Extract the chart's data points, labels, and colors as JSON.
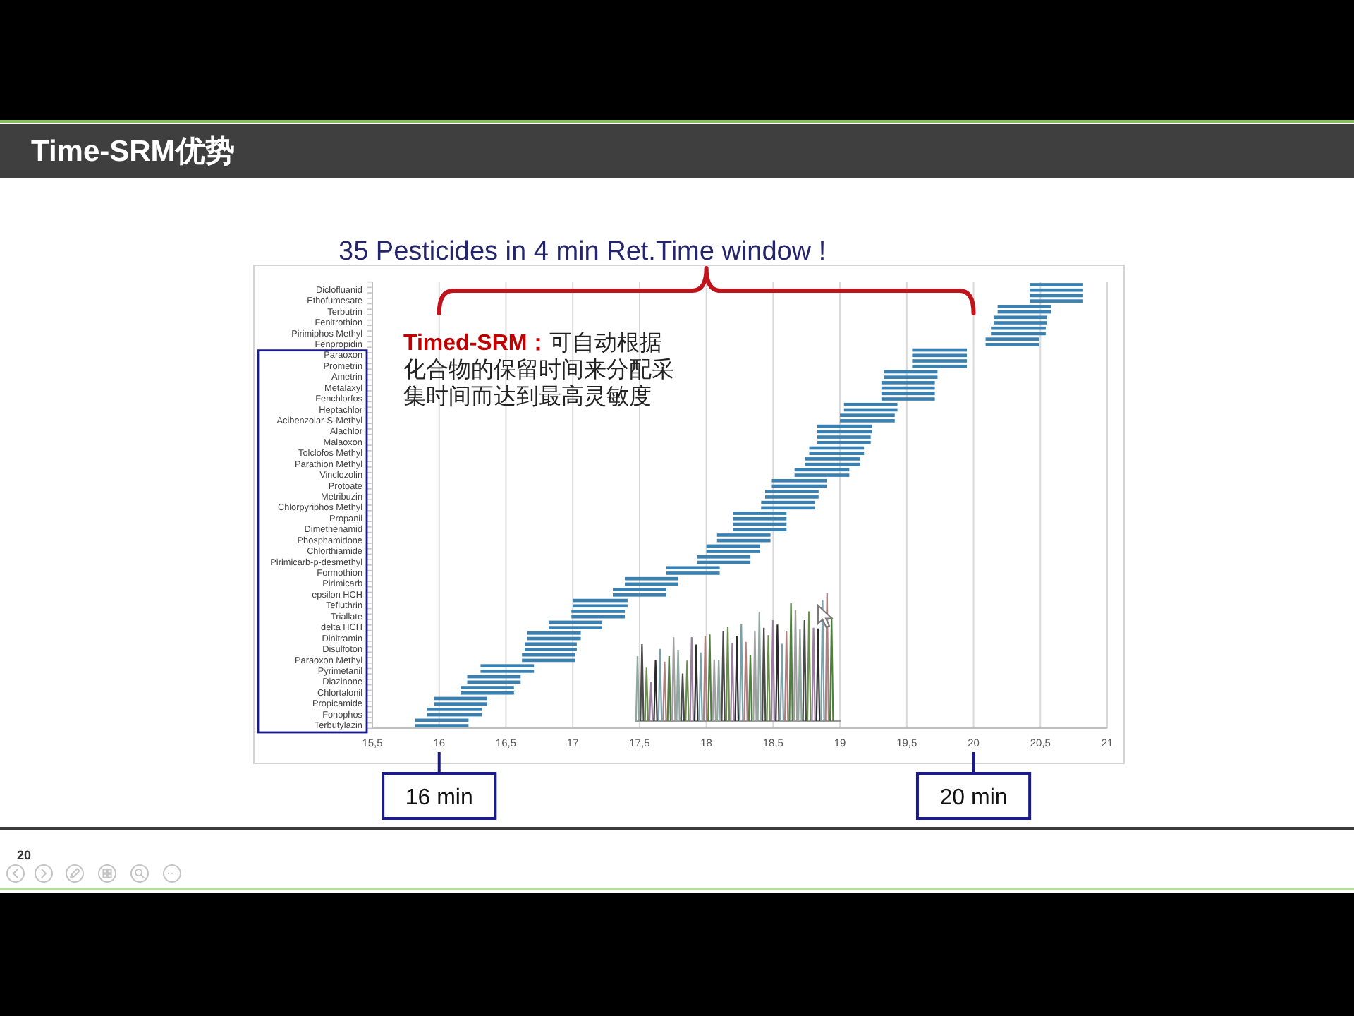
{
  "chart_data": {
    "type": "bar",
    "orientation": "horizontal",
    "title": "Time-SRM优势",
    "subtitle": "35 Pesticides in 4 min Ret.Time window !",
    "categories": [
      null,
      "Diclofluanid",
      null,
      "Ethofumesate",
      null,
      "Terbutrin",
      null,
      "Fenitrothion",
      null,
      "Pirimiphos Methyl",
      null,
      "Fenpropidin",
      null,
      "Paraoxon",
      null,
      "Prometrin",
      null,
      "Ametrin",
      null,
      "Metalaxyl",
      null,
      "Fenchlorfos",
      null,
      "Heptachlor",
      null,
      "Acibenzolar-S-Methyl",
      null,
      "Alachlor",
      null,
      "Malaoxon",
      null,
      "Tolclofos Methyl",
      null,
      "Parathion Methyl",
      null,
      "Vinclozolin",
      null,
      "Protoate",
      null,
      "Metribuzin",
      null,
      "Chlorpyriphos Methyl",
      null,
      "Propanil",
      null,
      "Dimethenamid",
      null,
      "Phosphamidone",
      null,
      "Chlorthiamide",
      null,
      "Pirimicarb-p-desmethyl",
      null,
      "Formothion",
      null,
      "Pirimicarb",
      null,
      "epsilon HCH",
      null,
      "Tefluthrin",
      null,
      "Triallate",
      null,
      "delta HCH",
      null,
      "Dinitramin",
      null,
      "Disulfoton",
      null,
      "Paraoxon Methyl",
      null,
      "Pyrimetanil",
      null,
      "Diazinone",
      null,
      "Chlortalonil",
      null,
      "Propicamide",
      null,
      "Fonophos",
      null,
      "Terbutylazin"
    ],
    "base": [
      20.42,
      20.42,
      20.42,
      20.42,
      20.18,
      20.18,
      20.15,
      20.15,
      20.13,
      20.13,
      20.09,
      20.09,
      19.54,
      19.54,
      19.54,
      19.54,
      19.33,
      19.33,
      19.31,
      19.31,
      19.31,
      19.31,
      19.03,
      19.03,
      19.0,
      19.0,
      18.83,
      18.83,
      18.83,
      18.83,
      18.77,
      18.77,
      18.74,
      18.74,
      18.66,
      18.66,
      18.49,
      18.49,
      18.44,
      18.44,
      18.41,
      18.41,
      18.2,
      18.2,
      18.2,
      18.2,
      18.08,
      18.08,
      18.0,
      18.0,
      17.93,
      17.93,
      17.7,
      17.7,
      17.39,
      17.39,
      17.3,
      17.3,
      17.0,
      17.0,
      16.99,
      16.99,
      16.82,
      16.82,
      16.66,
      16.66,
      16.64,
      16.64,
      16.62,
      16.62,
      16.31,
      16.31,
      16.21,
      16.21,
      16.16,
      16.16,
      15.96,
      15.96,
      15.91,
      15.91,
      15.82,
      15.82
    ],
    "values": [
      0.4,
      0.4,
      0.4,
      0.4,
      0.4,
      0.4,
      0.4,
      0.4,
      0.41,
      0.41,
      0.4,
      0.4,
      0.41,
      0.41,
      0.41,
      0.41,
      0.4,
      0.4,
      0.4,
      0.4,
      0.4,
      0.4,
      0.4,
      0.4,
      0.41,
      0.41,
      0.41,
      0.41,
      0.4,
      0.4,
      0.41,
      0.41,
      0.41,
      0.41,
      0.41,
      0.41,
      0.41,
      0.41,
      0.4,
      0.4,
      0.4,
      0.4,
      0.4,
      0.4,
      0.4,
      0.4,
      0.4,
      0.4,
      0.4,
      0.4,
      0.4,
      0.4,
      0.4,
      0.4,
      0.4,
      0.4,
      0.4,
      0.4,
      0.41,
      0.41,
      0.4,
      0.4,
      0.4,
      0.4,
      0.4,
      0.4,
      0.39,
      0.39,
      0.4,
      0.4,
      0.4,
      0.4,
      0.4,
      0.4,
      0.4,
      0.4,
      0.4,
      0.4,
      0.41,
      0.41,
      0.4,
      0.4
    ],
    "color": "#3a80b0",
    "xlim": [
      15.5,
      21
    ],
    "xticks": [
      {
        "value": 15.5,
        "label": "15,5"
      },
      16,
      {
        "value": 16.5,
        "label": "16,5"
      },
      17,
      {
        "value": 17.5,
        "label": "17,5"
      },
      18,
      {
        "value": 18.5,
        "label": "18,5"
      },
      19,
      {
        "value": 19.5,
        "label": "19,5"
      },
      20,
      {
        "value": 20.5,
        "label": "20,5"
      },
      21
    ],
    "grid": "x",
    "ref_lines": [
      {
        "axis": "x",
        "value": 16,
        "label": "16 min"
      },
      {
        "axis": "x",
        "value": 20,
        "label": "20 min"
      }
    ],
    "annotations": [
      "Timed-SRM：可自动根据化合物的保留时间来分配采集时间而达到最高灵敏度",
      "20"
    ]
  }
}
